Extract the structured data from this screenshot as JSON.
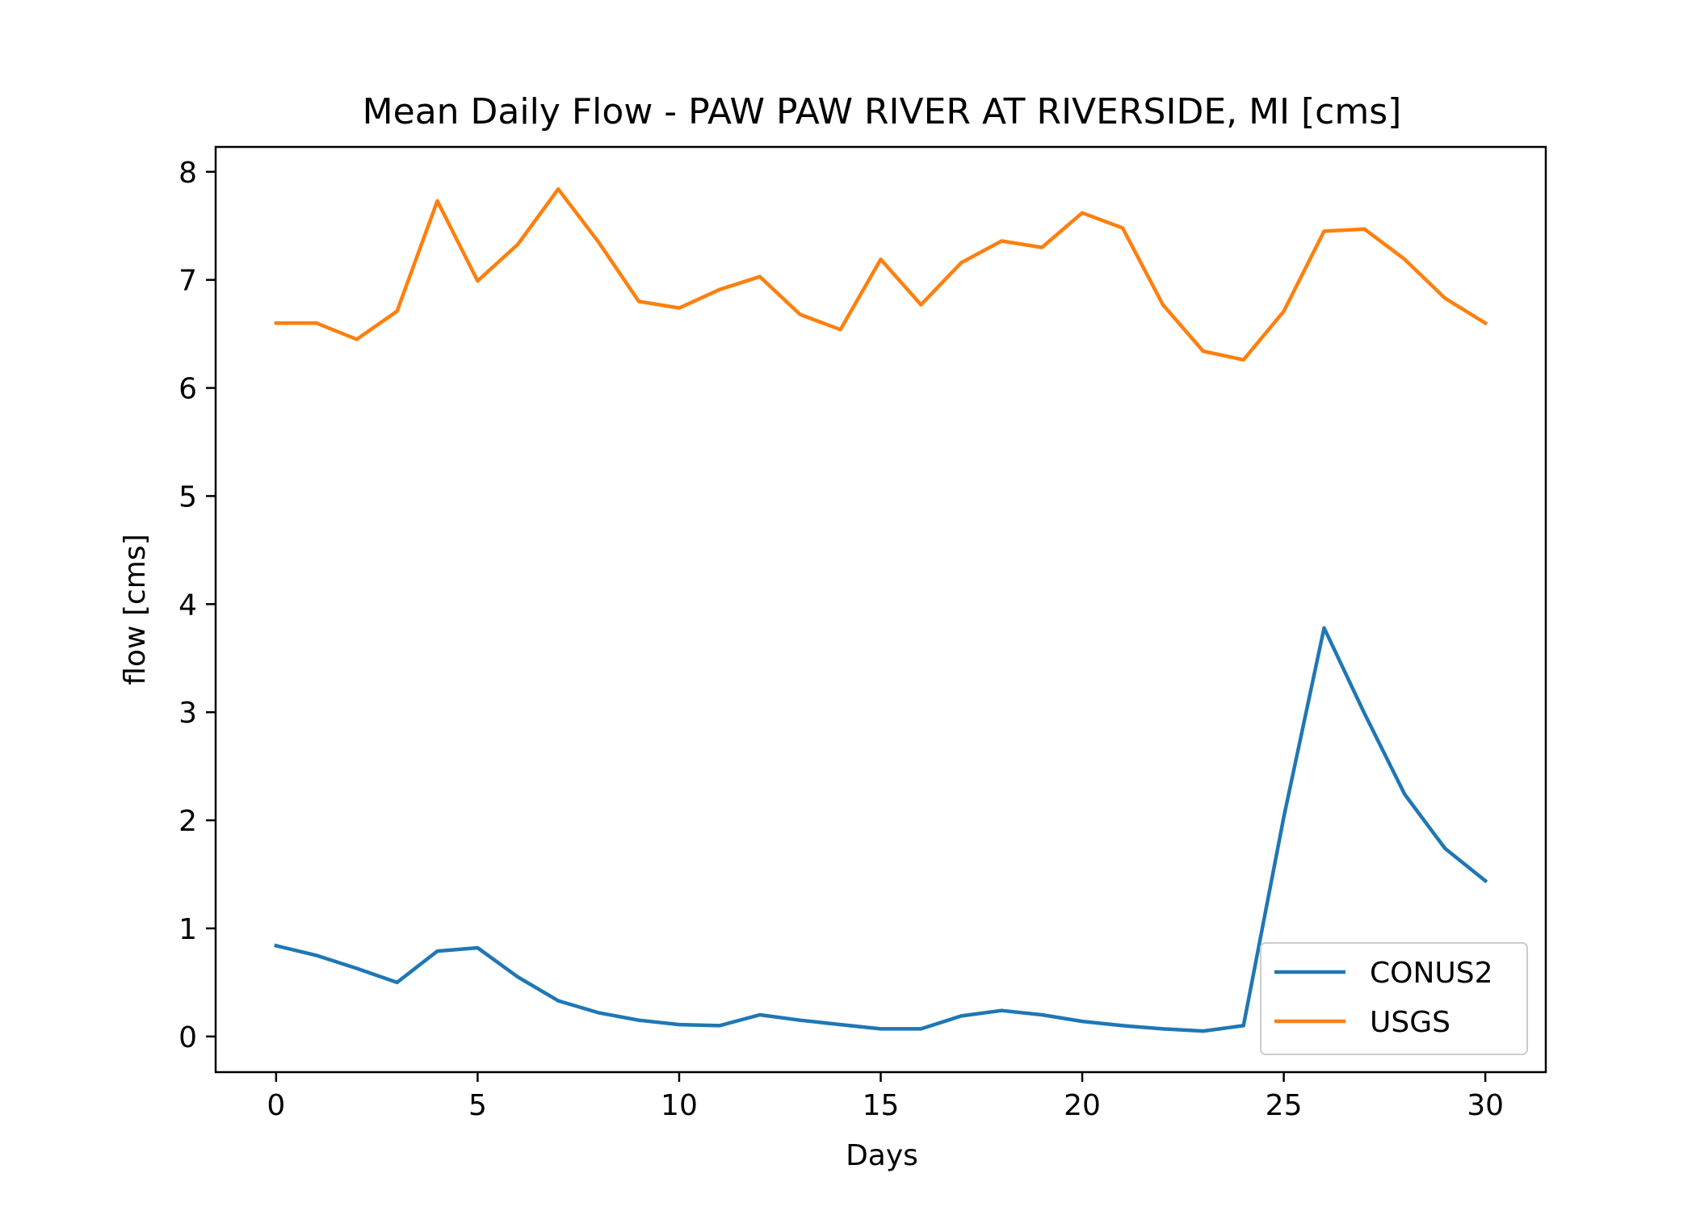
{
  "chart_data": {
    "type": "line",
    "title": "Mean Daily Flow - PAW PAW RIVER AT RIVERSIDE, MI [cms]",
    "xlabel": "Days",
    "ylabel": "flow [cms]",
    "xlim": [
      -1.5,
      31.5
    ],
    "ylim": [
      -0.33,
      8.23
    ],
    "xticks": [
      0,
      5,
      10,
      15,
      20,
      25,
      30
    ],
    "yticks": [
      0,
      1,
      2,
      3,
      4,
      5,
      6,
      7,
      8
    ],
    "grid": false,
    "legend_position": "lower-right",
    "x": [
      0,
      1,
      2,
      3,
      4,
      5,
      6,
      7,
      8,
      9,
      10,
      11,
      12,
      13,
      14,
      15,
      16,
      17,
      18,
      19,
      20,
      21,
      22,
      23,
      24,
      25,
      26,
      27,
      28,
      29,
      30
    ],
    "series": [
      {
        "name": "CONUS2",
        "color": "#1f77b4",
        "values": [
          0.84,
          0.75,
          0.63,
          0.5,
          0.79,
          0.82,
          0.55,
          0.33,
          0.22,
          0.15,
          0.11,
          0.1,
          0.2,
          0.15,
          0.11,
          0.07,
          0.07,
          0.19,
          0.24,
          0.2,
          0.14,
          0.1,
          0.07,
          0.05,
          0.1,
          2.03,
          3.78,
          2.99,
          2.24,
          1.74,
          1.44
        ]
      },
      {
        "name": "USGS",
        "color": "#ff7f0e",
        "values": [
          6.6,
          6.6,
          6.45,
          6.71,
          7.73,
          6.99,
          7.33,
          7.84,
          7.35,
          6.8,
          6.74,
          6.91,
          7.03,
          6.68,
          6.54,
          7.19,
          6.77,
          7.16,
          7.36,
          7.3,
          7.62,
          7.48,
          6.77,
          6.34,
          6.26,
          6.71,
          7.45,
          7.47,
          7.19,
          6.83,
          6.6
        ]
      }
    ]
  }
}
